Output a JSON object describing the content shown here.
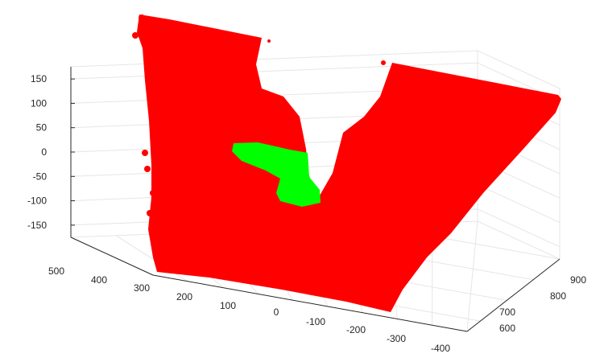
{
  "chart_data": {
    "type": "scatter",
    "mode": "3d-point-cloud",
    "title": "",
    "xlabel": "",
    "ylabel": "",
    "zlabel": "",
    "xlim": [
      -400,
      500
    ],
    "ylim": [
      550,
      900
    ],
    "zlim": [
      -175,
      175
    ],
    "grid": true,
    "legend": "none",
    "x_ticks": [
      "500",
      "400",
      "300",
      "200",
      "100",
      "0",
      "-100",
      "-200",
      "-300",
      "-400"
    ],
    "y_ticks": [
      "600",
      "700",
      "800",
      "900"
    ],
    "z_ticks": [
      "150",
      "100",
      "50",
      "0",
      "-50",
      "-100",
      "-150"
    ],
    "series": [
      {
        "color": "#ff0000",
        "shape": "v-shaped surface"
      },
      {
        "color": "#00ff00",
        "shape": "small cluster"
      }
    ]
  }
}
